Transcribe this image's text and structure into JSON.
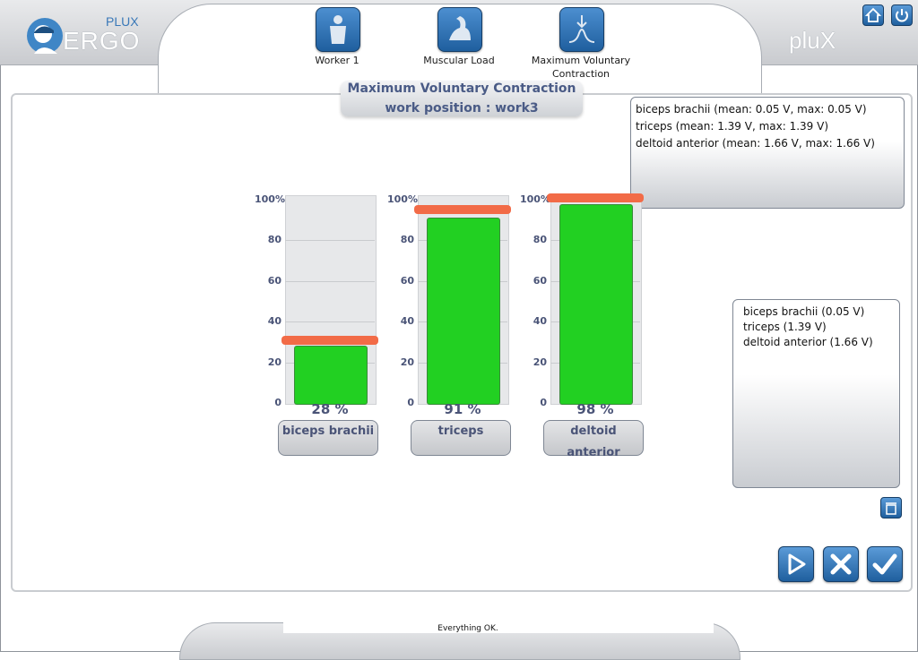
{
  "header": {
    "logo_brand": "PLUX",
    "logo_product": "ERGO",
    "right_logo": "pluX",
    "nav": [
      {
        "label": "Worker 1",
        "icon": "worker-icon"
      },
      {
        "label": "Muscular Load",
        "icon": "muscle-arm-icon"
      },
      {
        "label": "Maximum Voluntary Contraction",
        "icon": "mvc-curve-icon"
      }
    ],
    "corner_buttons": [
      "home-icon",
      "power-icon"
    ]
  },
  "title": {
    "line1": "Maximum Voluntary Contraction",
    "line2": "work position : work3"
  },
  "info_top": [
    "biceps brachii (mean: 0.05 V, max: 0.05 V)",
    "triceps (mean: 1.39 V, max: 1.39 V)",
    "deltoid anterior (mean: 1.66 V, max: 1.66 V)"
  ],
  "info_right": [
    "biceps brachii (0.05 V)",
    "triceps (1.39 V)",
    "deltoid anterior (1.66 V)"
  ],
  "chart_data": {
    "type": "bar",
    "yticks": [
      "100%",
      "80",
      "60",
      "40",
      "20",
      "0"
    ],
    "ylim": [
      0,
      100
    ],
    "categories": [
      "biceps brachii",
      "triceps",
      "deltoid anterior"
    ],
    "values": [
      28,
      91,
      98
    ],
    "markers": [
      31,
      95,
      101
    ],
    "value_labels": [
      "28 %",
      "91 %",
      "98 %"
    ],
    "bar_color": "#22d022",
    "marker_color": "#f26b47"
  },
  "actions": [
    "play-icon",
    "cancel-icon",
    "confirm-icon"
  ],
  "trash": "trash-icon",
  "footer": {
    "status": "Everything OK."
  }
}
